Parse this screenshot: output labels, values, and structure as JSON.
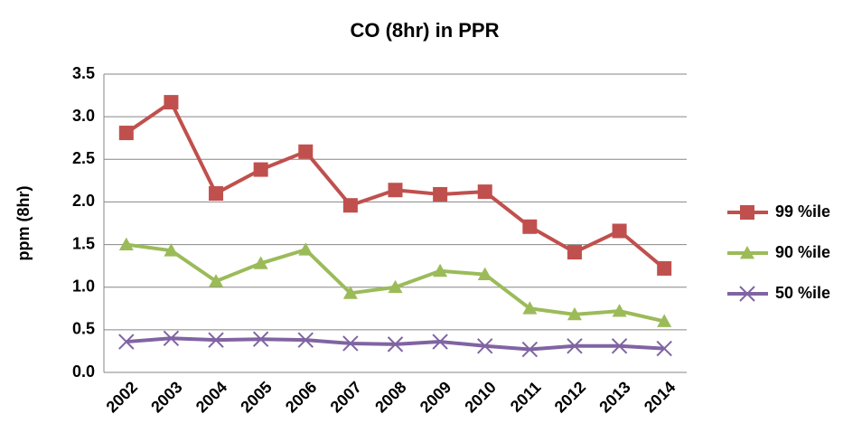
{
  "chart_data": {
    "type": "line",
    "title": "CO (8hr) in PPR",
    "y_label": "ppm (8hr)",
    "categories": [
      "2002",
      "2003",
      "2004",
      "2005",
      "2006",
      "2007",
      "2008",
      "2009",
      "2010",
      "2011",
      "2012",
      "2013",
      "2014"
    ],
    "series": [
      {
        "name": "99 %ile",
        "color": "#c0504d",
        "marker": "square",
        "values": [
          2.81,
          3.17,
          2.1,
          2.38,
          2.59,
          1.96,
          2.14,
          2.09,
          2.12,
          1.71,
          1.41,
          1.66,
          1.22
        ]
      },
      {
        "name": "90 %ile",
        "color": "#9bbb59",
        "marker": "triangle",
        "values": [
          1.5,
          1.43,
          1.07,
          1.28,
          1.44,
          0.93,
          1.0,
          1.19,
          1.15,
          0.75,
          0.68,
          0.72,
          0.6
        ]
      },
      {
        "name": "50 %ile",
        "color": "#8064a2",
        "marker": "x",
        "values": [
          0.36,
          0.4,
          0.38,
          0.39,
          0.38,
          0.34,
          0.33,
          0.36,
          0.31,
          0.27,
          0.31,
          0.31,
          0.28
        ]
      }
    ],
    "ylim": [
      0,
      3.5
    ],
    "yticks": [
      {
        "value": 0,
        "label": "0.0"
      },
      0.5,
      {
        "value": 1,
        "label": "1.0"
      },
      1.5,
      {
        "value": 2,
        "label": "2.0"
      },
      2.5,
      {
        "value": 3,
        "label": "3.0"
      },
      3.5
    ],
    "grid": true,
    "legend": "right"
  }
}
